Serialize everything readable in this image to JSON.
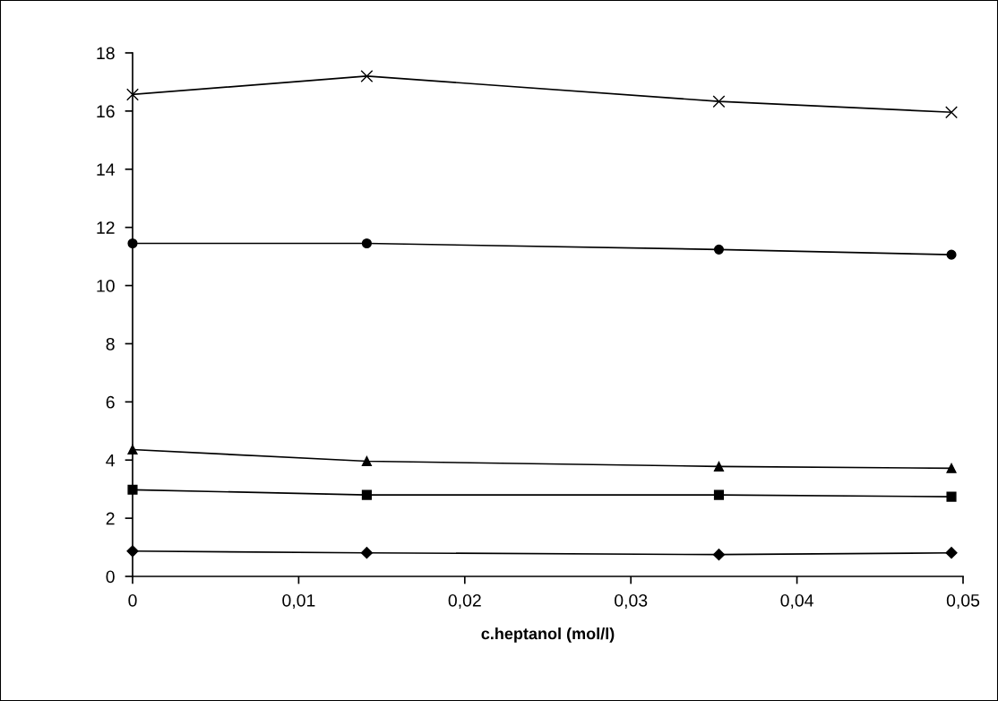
{
  "chart_data": {
    "type": "line",
    "xlabel": "c.heptanol (mol/l)",
    "x": [
      0,
      0.0141,
      0.0353,
      0.0493
    ],
    "xlim": [
      0,
      0.05
    ],
    "xticks": [
      0,
      {
        "value": 0.01,
        "label": "0,01"
      },
      {
        "value": 0.02,
        "label": "0,02"
      },
      {
        "value": 0.03,
        "label": "0,03"
      },
      {
        "value": 0.04,
        "label": "0,04"
      },
      {
        "value": 0.05,
        "label": "0,05"
      }
    ],
    "ylim": [
      0,
      18
    ],
    "yticks": [
      0,
      2,
      4,
      6,
      8,
      10,
      12,
      14,
      16,
      18
    ],
    "grid": false,
    "legend": false,
    "series": [
      {
        "color": "#000000",
        "marker": "cross",
        "values": [
          16.57,
          17.2,
          16.33,
          15.96
        ]
      },
      {
        "color": "#000000",
        "marker": "circle",
        "values": [
          11.45,
          11.45,
          11.24,
          11.06
        ]
      },
      {
        "color": "#000000",
        "marker": "triangle",
        "values": [
          4.36,
          3.96,
          3.78,
          3.72
        ]
      },
      {
        "color": "#000000",
        "marker": "square",
        "values": [
          2.98,
          2.8,
          2.8,
          2.74
        ]
      },
      {
        "color": "#000000",
        "marker": "diamond",
        "values": [
          0.87,
          0.81,
          0.75,
          0.81
        ]
      }
    ]
  }
}
